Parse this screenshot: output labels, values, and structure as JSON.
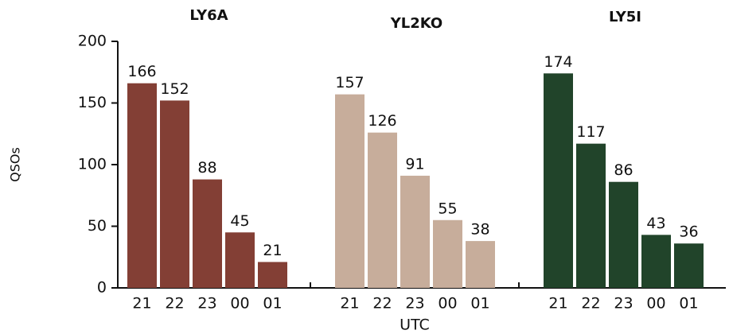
{
  "chart_data": {
    "type": "bar",
    "xlabel": "UTC",
    "ylabel": "QSOs",
    "ylim": [
      0,
      200
    ],
    "yticks": [
      0,
      50,
      100,
      150,
      200
    ],
    "groups": [
      {
        "name": "LY6A",
        "color": "#833f35",
        "categories": [
          "21",
          "22",
          "23",
          "00",
          "01"
        ],
        "values": [
          166,
          152,
          88,
          45,
          21
        ]
      },
      {
        "name": "YL2KO",
        "color": "#c7ad9b",
        "categories": [
          "21",
          "22",
          "23",
          "00",
          "01"
        ],
        "values": [
          157,
          126,
          91,
          55,
          38
        ]
      },
      {
        "name": "LY5I",
        "color": "#21442a",
        "categories": [
          "21",
          "22",
          "23",
          "00",
          "01"
        ],
        "values": [
          174,
          117,
          86,
          43,
          36
        ]
      }
    ]
  }
}
